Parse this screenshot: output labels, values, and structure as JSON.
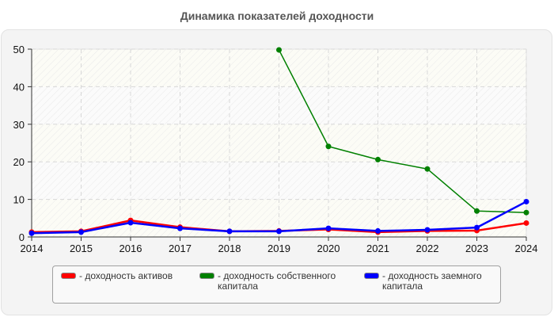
{
  "title": "Динамика показателей доходности",
  "chart_data": {
    "type": "line",
    "title": "Динамика показателей доходности",
    "xlabel": "",
    "ylabel": "",
    "x": [
      2014,
      2015,
      2016,
      2017,
      2018,
      2019,
      2020,
      2021,
      2022,
      2023,
      2024
    ],
    "ylim": [
      0,
      50
    ],
    "yticks": [
      0,
      10,
      20,
      30,
      40,
      50
    ],
    "grid": true,
    "legend_position": "bottom",
    "series": [
      {
        "name": "- доходность активов",
        "color": "#ff0000",
        "values": [
          1.3,
          1.5,
          4.4,
          2.6,
          1.5,
          1.6,
          2.0,
          1.3,
          1.6,
          1.7,
          3.7
        ]
      },
      {
        "name": "- доходность собственного капитала",
        "color": "#008000",
        "values": [
          null,
          null,
          null,
          null,
          null,
          49.8,
          24.1,
          20.6,
          18.1,
          6.9,
          6.5
        ]
      },
      {
        "name": "- доходность заемного капитала",
        "color": "#0000ff",
        "values": [
          1.0,
          1.3,
          3.8,
          2.3,
          1.5,
          1.5,
          2.3,
          1.6,
          1.9,
          2.5,
          9.4
        ]
      }
    ]
  },
  "legend": {
    "items": [
      {
        "label": "- доходность активов",
        "color": "#ff0000"
      },
      {
        "label": "- доходность собственного\nкапитала",
        "color": "#008000"
      },
      {
        "label": "- доходность заемного\nкапитала",
        "color": "#0000ff"
      }
    ]
  }
}
